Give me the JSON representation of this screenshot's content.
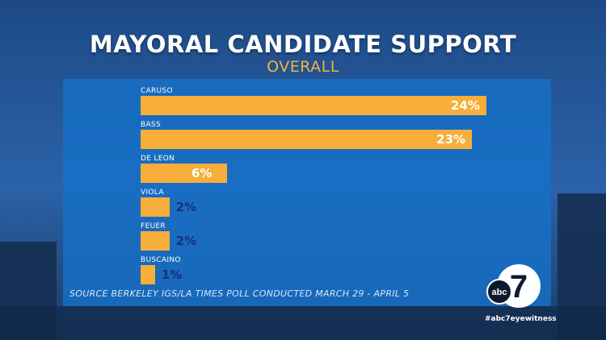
{
  "title": "MAYORAL CANDIDATE SUPPORT",
  "subtitle": "OVERALL",
  "source": "SOURCE BERKELEY IGS/LA TIMES POLL CONDUCTED MARCH 29 - APRIL 5",
  "logo_text": "abc",
  "logo_digit": "7",
  "hashtag": "#abc7eyewitness",
  "colors": {
    "bar": "#f7ae3a",
    "panel": "#1670c8",
    "title": "#ffffff",
    "subtitle": "#f6b13c",
    "outside_label": "#1a2f7a"
  },
  "chart_data": {
    "type": "bar",
    "orientation": "horizontal",
    "title": "MAYORAL CANDIDATE SUPPORT",
    "subtitle": "OVERALL",
    "categories": [
      "CARUSO",
      "BASS",
      "DE LEON",
      "VIOLA",
      "FEUER",
      "BUSCAINO"
    ],
    "values": [
      24,
      23,
      6,
      2,
      2,
      1
    ],
    "value_labels": [
      "24%",
      "23%",
      "6%",
      "2%",
      "2%",
      "1%"
    ],
    "unit": "%",
    "xlim": [
      0,
      24
    ],
    "grid": false,
    "legend": "none"
  }
}
